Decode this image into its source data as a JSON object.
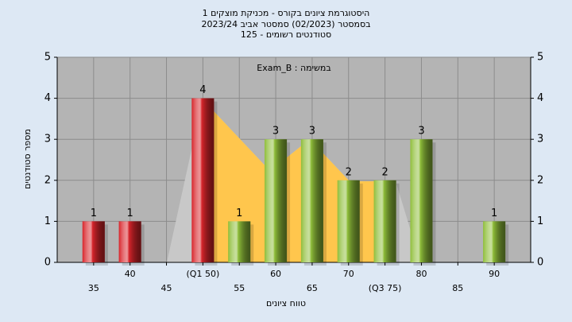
{
  "chart_data": {
    "type": "bar",
    "title": "היסטוגרמת ציונים בקורס - מכניקת מוצקים 1",
    "subtitle": "בסמסטר  (02/2023)  סמסטר אביב 2023/24",
    "subtitle2": "סטודנטים רשומים - 125",
    "annotation": "Exam_B : במשימה",
    "xlabel": "טווח ציונים",
    "ylabel": "מספר סטודנטים",
    "categories": [
      "35",
      "40",
      "45",
      "(Q1 50)",
      "55",
      "60",
      "65",
      "70",
      "(Q3 75)",
      "80",
      "85",
      "90"
    ],
    "values": [
      1,
      1,
      0,
      4,
      1,
      3,
      3,
      2,
      2,
      3,
      0,
      1
    ],
    "colors": [
      "#d8252b",
      "#d8252b",
      "#8fbe3a",
      "#d8252b",
      "#8fbe3a",
      "#8fbe3a",
      "#8fbe3a",
      "#8fbe3a",
      "#8fbe3a",
      "#8fbe3a",
      "#8fbe3a",
      "#8fbe3a"
    ],
    "ylim": [
      0,
      5
    ],
    "yticks": [
      0,
      1,
      2,
      3,
      4,
      5
    ],
    "grid": true
  }
}
